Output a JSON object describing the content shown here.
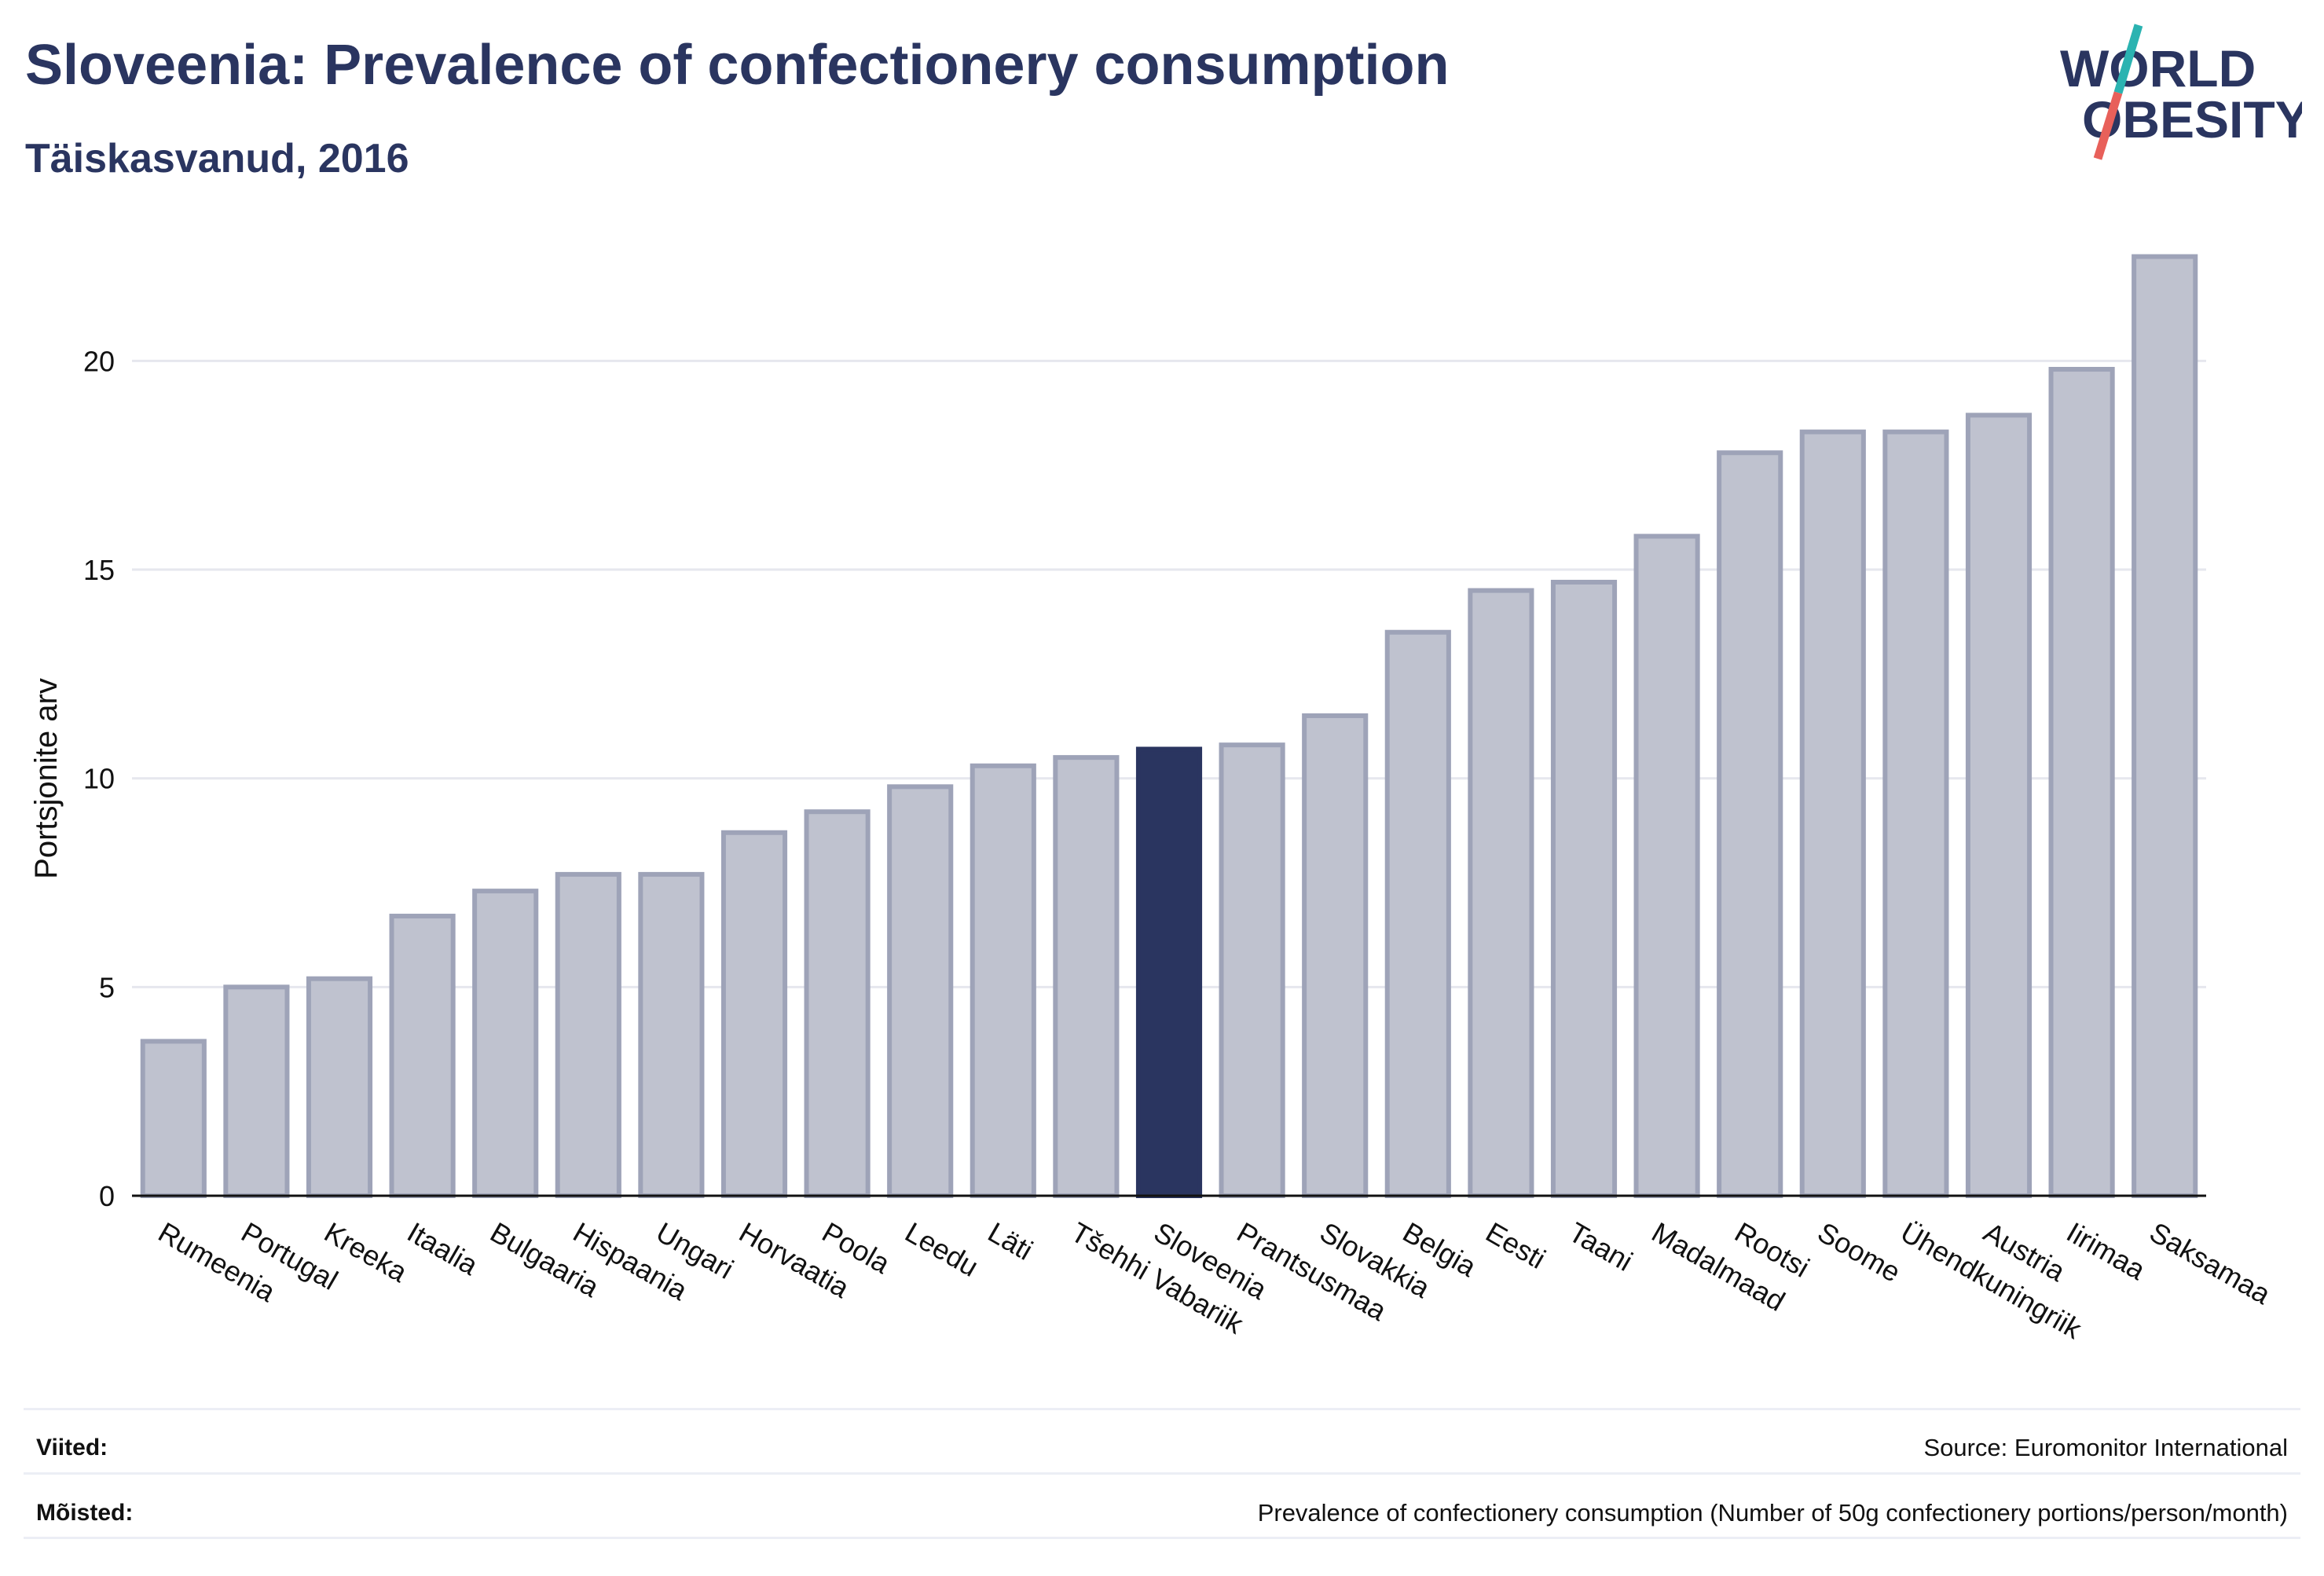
{
  "header": {
    "title": "Sloveenia: Prevalence of confectionery consumption",
    "subtitle": "Täiskasvanud, 2016"
  },
  "logo": {
    "line1": "WORLD",
    "line2": "OBESITY",
    "colors": {
      "text": "#2a3560",
      "slash_top": "#2bb3b1",
      "slash_bottom": "#e8605a"
    }
  },
  "chart_data": {
    "type": "bar",
    "title": "Sloveenia: Prevalence of confectionery consumption",
    "subtitle": "Täiskasvanud, 2016",
    "ylabel": "Portsjonite arv",
    "xlabel": "",
    "ylim": [
      0,
      23
    ],
    "yticks": [
      0,
      5,
      10,
      15,
      20
    ],
    "grid": true,
    "highlight": "Sloveenia",
    "colors": {
      "bar": "#bfc2cf",
      "bar_edge": "#9ea3b8",
      "highlight": "#2a3560"
    },
    "categories": [
      "Rumeenia",
      "Portugal",
      "Kreeka",
      "Itaalia",
      "Bulgaaria",
      "Hispaania",
      "Ungari",
      "Horvaatia",
      "Poola",
      "Leedu",
      "Läti",
      "Tšehhi Vabariik",
      "Sloveenia",
      "Prantsusmaa",
      "Slovakkia",
      "Belgia",
      "Eesti",
      "Taani",
      "Madalmaad",
      "Rootsi",
      "Soome",
      "Ühendkuningriik",
      "Austria",
      "Iirimaa",
      "Saksamaa"
    ],
    "values": [
      3.7,
      5.0,
      5.2,
      6.7,
      7.3,
      7.7,
      7.7,
      8.7,
      9.2,
      9.8,
      10.3,
      10.5,
      10.7,
      10.8,
      11.5,
      13.5,
      14.5,
      14.7,
      15.8,
      17.8,
      18.3,
      18.3,
      18.7,
      19.8,
      22.5
    ]
  },
  "footer": {
    "references_label": "Viited:",
    "references_value": "Source: Euromonitor International",
    "definitions_label": "Mõisted:",
    "definitions_value": "Prevalence of confectionery consumption (Number of 50g confectionery portions/person/month)"
  }
}
